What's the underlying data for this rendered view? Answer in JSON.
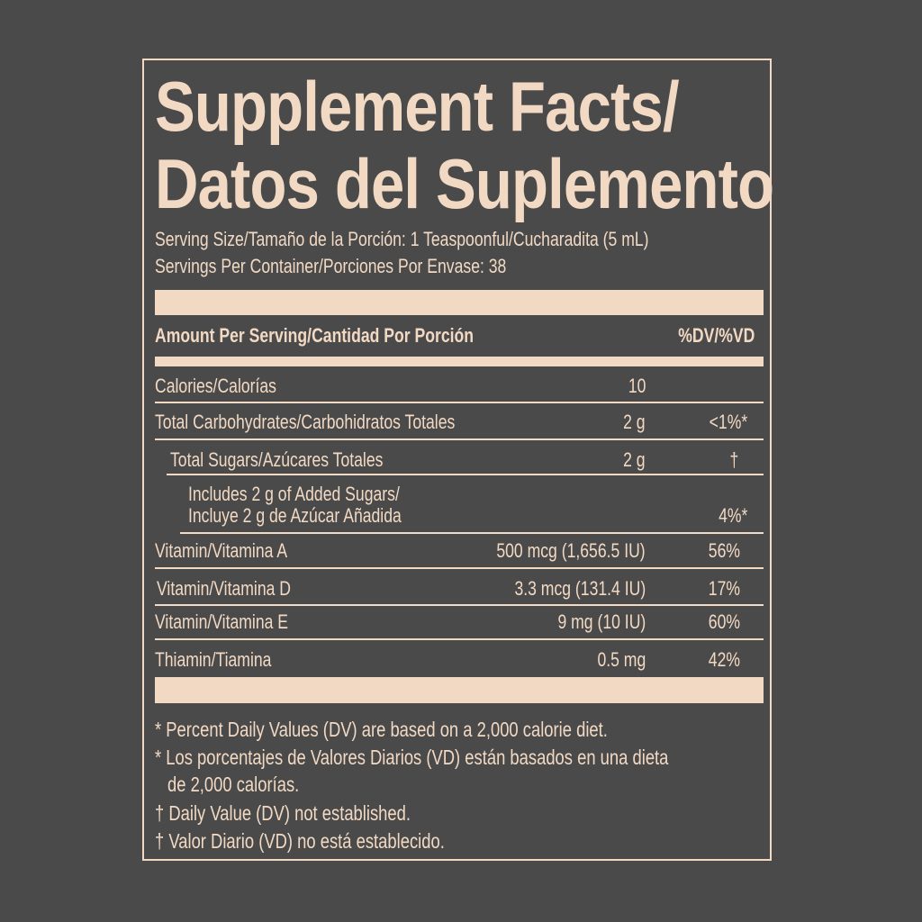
{
  "title_line1": "Supplement Facts/",
  "title_line2": "Datos del Suplemento",
  "serving_size": "Serving Size/Tamaño de la Porción: 1 Teaspoonful/Cucharadita (5 mL)",
  "servings_per_container": "Servings Per Container/Porciones Por Envase: 38",
  "header": {
    "amount": "Amount Per Serving/Cantidad Por Porción",
    "dv": "%DV/%VD"
  },
  "rows": [
    {
      "name": "Calories/Calorías",
      "amount": "10",
      "dv": ""
    },
    {
      "name": "Total Carbohydrates/Carbohidratos Totales",
      "amount": "2 g",
      "dv": "<1%*"
    },
    {
      "name": "Total Sugars/Azúcares Totales",
      "amount": "2 g",
      "dv": "†"
    },
    {
      "name": "Includes 2 g of Added Sugars/",
      "name2": "Incluye 2 g de Azúcar Añadida",
      "amount": "",
      "dv": "4%*"
    },
    {
      "name": "Vitamin/Vitamina A",
      "amount": "500 mcg (1,656.5 IU)",
      "dv": "56%"
    },
    {
      "name": "Vitamin/Vitamina D",
      "amount": "3.3 mcg (131.4 IU)",
      "dv": "17%"
    },
    {
      "name": "Vitamin/Vitamina E",
      "amount": "9 mg (10 IU)",
      "dv": "60%"
    },
    {
      "name": "Thiamin/Tiamina",
      "amount": "0.5 mg",
      "dv": "42%"
    }
  ],
  "footnotes": [
    "* Percent Daily Values (DV) are based on a 2,000 calorie diet.",
    "* Los porcentajes de Valores Diarios (VD) están basados en una dieta",
    "de 2,000 calorías.",
    "† Daily Value (DV) not established.",
    "† Valor Diario (VD) no está establecido."
  ],
  "colors": {
    "background": "#4a4a4a",
    "text": "#f2d9c3"
  }
}
